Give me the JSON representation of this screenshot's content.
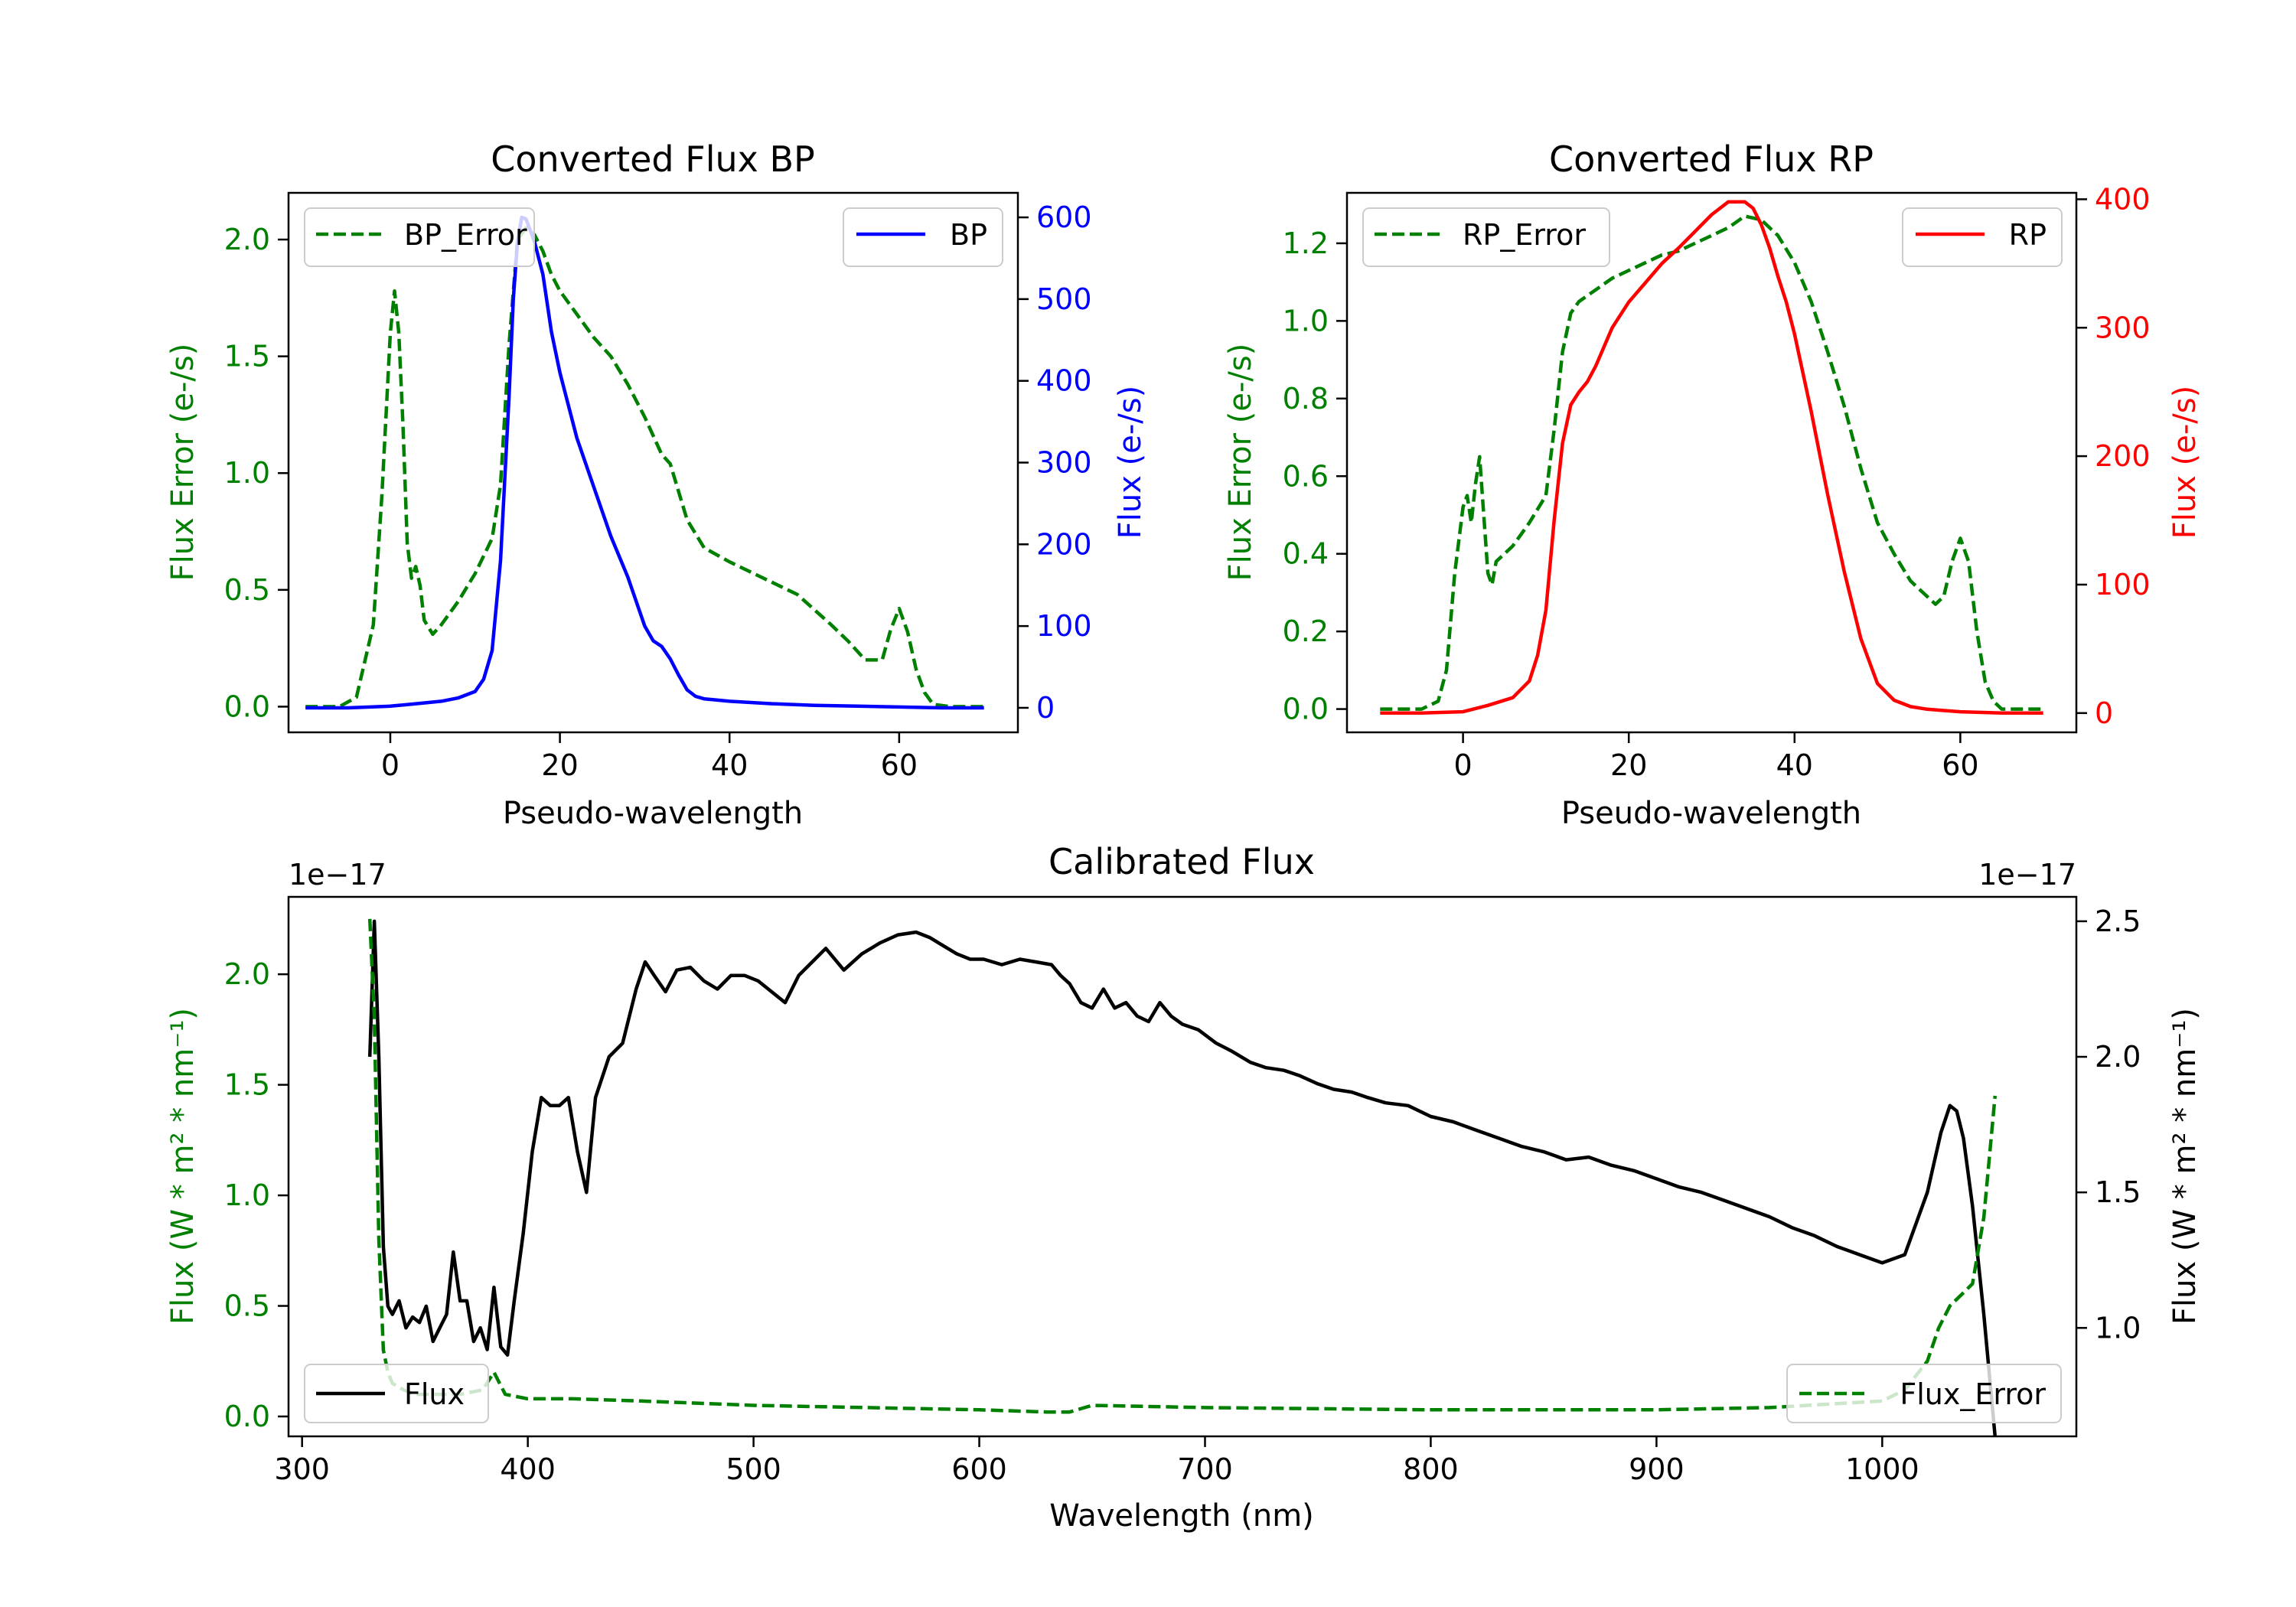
{
  "chart_data": [
    {
      "type": "line",
      "title": "Converted Flux BP",
      "xlabel": "Pseudo-wavelength",
      "ylabel_left": "Flux Error (e-/s)",
      "ylabel_right": "Flux (e-/s)",
      "xlim": [
        -12,
        74
      ],
      "ylim_left": [
        -0.11,
        2.2
      ],
      "ylim_right": [
        -30,
        630
      ],
      "x_ticks": [
        "0",
        "20",
        "40",
        "60"
      ],
      "y_left_ticks": [
        "0.0",
        "0.5",
        "1.0",
        "1.5",
        "2.0"
      ],
      "y_right_ticks": [
        "0",
        "100",
        "200",
        "300",
        "400",
        "500",
        "600"
      ],
      "series": [
        {
          "name": "BP_Error",
          "axis": "left",
          "style": "dashed",
          "color": "#008000",
          "x": [
            -10,
            -6,
            -4,
            -2,
            -1,
            0,
            0.5,
            1,
            1.5,
            2,
            2.5,
            3,
            3.5,
            4,
            5,
            6,
            8,
            10,
            12,
            13,
            14,
            15,
            16,
            17,
            18,
            19,
            20,
            22,
            24,
            26,
            28,
            30,
            32,
            33,
            35,
            37,
            40,
            44,
            48,
            52,
            54,
            56,
            58,
            59,
            60,
            61,
            62,
            63,
            64,
            66,
            70
          ],
          "values": [
            0,
            0,
            0.04,
            0.35,
            0.9,
            1.6,
            1.78,
            1.6,
            1.2,
            0.7,
            0.55,
            0.6,
            0.52,
            0.37,
            0.31,
            0.35,
            0.45,
            0.57,
            0.72,
            0.95,
            1.55,
            2.0,
            2.05,
            2.02,
            1.95,
            1.85,
            1.78,
            1.68,
            1.58,
            1.5,
            1.38,
            1.24,
            1.08,
            1.04,
            0.8,
            0.68,
            0.62,
            0.55,
            0.48,
            0.35,
            0.28,
            0.2,
            0.2,
            0.33,
            0.42,
            0.32,
            0.16,
            0.06,
            0.01,
            0,
            0
          ]
        },
        {
          "name": "BP",
          "axis": "right",
          "style": "solid",
          "color": "#0000ff",
          "x": [
            -10,
            -5,
            0,
            2,
            6,
            8,
            10,
            11,
            12,
            13,
            14,
            14.5,
            15,
            15.5,
            16,
            17,
            18,
            19,
            20,
            22,
            24,
            26,
            28,
            30,
            31,
            32,
            33,
            34,
            35,
            36,
            37,
            38,
            40,
            45,
            50,
            55,
            60,
            65,
            70
          ],
          "values": [
            0,
            0,
            2,
            4,
            8,
            12,
            20,
            35,
            70,
            180,
            380,
            500,
            570,
            600,
            598,
            570,
            530,
            460,
            410,
            330,
            270,
            210,
            160,
            100,
            82,
            75,
            60,
            40,
            22,
            14,
            11,
            10,
            8,
            5,
            3,
            2,
            1,
            0,
            0
          ]
        }
      ],
      "legend": [
        {
          "label": "BP_Error",
          "position": "upper-left"
        },
        {
          "label": "BP",
          "position": "upper-right"
        }
      ]
    },
    {
      "type": "line",
      "title": "Converted Flux RP",
      "xlabel": "Pseudo-wavelength",
      "ylabel_left": "Flux Error (e-/s)",
      "ylabel_right": "Flux (e-/s)",
      "xlim": [
        -14,
        74
      ],
      "ylim_left": [
        -0.06,
        1.33
      ],
      "ylim_right": [
        -15,
        405
      ],
      "x_ticks": [
        "0",
        "20",
        "40",
        "60"
      ],
      "y_left_ticks": [
        "0.0",
        "0.2",
        "0.4",
        "0.6",
        "0.8",
        "1.0",
        "1.2"
      ],
      "y_right_ticks": [
        "0",
        "100",
        "200",
        "300",
        "400"
      ],
      "series": [
        {
          "name": "RP_Error",
          "axis": "left",
          "style": "dashed",
          "color": "#008000",
          "x": [
            -10,
            -5,
            -3,
            -2,
            -1,
            0,
            0.5,
            1,
            1.5,
            2,
            2.5,
            3,
            3.5,
            4,
            5,
            6,
            8,
            10,
            11,
            12,
            13,
            14,
            16,
            18,
            20,
            22,
            24,
            26,
            28,
            30,
            32,
            34,
            36,
            38,
            40,
            42,
            44,
            46,
            48,
            50,
            52,
            54,
            56,
            57,
            58,
            59,
            60,
            61,
            62,
            63,
            64,
            65,
            70
          ],
          "values": [
            0,
            0,
            0.02,
            0.1,
            0.35,
            0.52,
            0.55,
            0.48,
            0.58,
            0.65,
            0.5,
            0.35,
            0.32,
            0.38,
            0.4,
            0.42,
            0.48,
            0.55,
            0.72,
            0.92,
            1.02,
            1.05,
            1.08,
            1.11,
            1.13,
            1.15,
            1.17,
            1.18,
            1.2,
            1.22,
            1.24,
            1.27,
            1.26,
            1.22,
            1.15,
            1.05,
            0.92,
            0.78,
            0.62,
            0.48,
            0.4,
            0.33,
            0.29,
            0.27,
            0.29,
            0.38,
            0.44,
            0.38,
            0.2,
            0.07,
            0.02,
            0,
            0
          ]
        },
        {
          "name": "RP",
          "axis": "right",
          "style": "solid",
          "color": "#ff0000",
          "x": [
            -10,
            -5,
            0,
            3,
            6,
            8,
            9,
            10,
            11,
            12,
            13,
            14,
            15,
            16,
            18,
            20,
            22,
            24,
            26,
            28,
            30,
            32,
            34,
            35,
            36,
            37,
            38,
            39,
            40,
            42,
            44,
            46,
            48,
            50,
            52,
            54,
            56,
            58,
            60,
            65,
            70
          ],
          "values": [
            0,
            0,
            1,
            6,
            12,
            25,
            45,
            80,
            150,
            210,
            240,
            250,
            258,
            270,
            300,
            320,
            335,
            350,
            362,
            375,
            388,
            398,
            398,
            393,
            380,
            362,
            340,
            320,
            295,
            235,
            170,
            110,
            58,
            23,
            10,
            5,
            3,
            2,
            1,
            0,
            0
          ]
        }
      ],
      "legend": [
        {
          "label": "RP_Error",
          "position": "upper-left"
        },
        {
          "label": "RP",
          "position": "upper-right"
        }
      ]
    },
    {
      "type": "line",
      "title": "Calibrated Flux",
      "xlabel": "Wavelength (nm)",
      "ylabel_left": "Flux (W * m² * nm⁻¹)",
      "ylabel_right": "Flux (W * m² * nm⁻¹)",
      "offset_left": "1e−17",
      "offset_right": "1e−17",
      "xlim": [
        294,
        1086
      ],
      "ylim_left": [
        -0.09,
        2.35
      ],
      "ylim_right": [
        0.6,
        2.59
      ],
      "x_ticks": [
        "300",
        "400",
        "500",
        "600",
        "700",
        "800",
        "900",
        "1000"
      ],
      "y_left_ticks": [
        "0.0",
        "0.5",
        "1.0",
        "1.5",
        "2.0"
      ],
      "y_right_ticks": [
        "1.0",
        "1.5",
        "2.0",
        "2.5"
      ],
      "series": [
        {
          "name": "Flux",
          "axis": "right",
          "style": "solid",
          "color": "#000000",
          "x": [
            330,
            332,
            334,
            336,
            338,
            340,
            343,
            346,
            349,
            352,
            355,
            358,
            361,
            364,
            367,
            370,
            373,
            376,
            379,
            382,
            385,
            388,
            391,
            394,
            398,
            402,
            406,
            410,
            414,
            418,
            422,
            426,
            430,
            436,
            442,
            448,
            452,
            456,
            461,
            466,
            472,
            478,
            484,
            490,
            496,
            502,
            508,
            514,
            520,
            526,
            532,
            540,
            548,
            556,
            564,
            572,
            578,
            584,
            590,
            596,
            602,
            610,
            618,
            625,
            632,
            636,
            640,
            645,
            650,
            655,
            660,
            665,
            670,
            675,
            680,
            685,
            690,
            697,
            705,
            712,
            720,
            727,
            735,
            742,
            750,
            757,
            765,
            772,
            780,
            790,
            800,
            810,
            820,
            830,
            840,
            850,
            860,
            870,
            880,
            890,
            900,
            910,
            920,
            930,
            940,
            950,
            960,
            970,
            980,
            990,
            1000,
            1010,
            1020,
            1026,
            1030,
            1033,
            1036,
            1040,
            1045,
            1050
          ],
          "values": [
            2.0,
            2.5,
            2.0,
            1.3,
            1.08,
            1.05,
            1.1,
            1.0,
            1.04,
            1.02,
            1.08,
            0.95,
            1.0,
            1.05,
            1.28,
            1.1,
            1.1,
            0.95,
            1.0,
            0.92,
            1.15,
            0.93,
            0.9,
            1.1,
            1.35,
            1.65,
            1.85,
            1.82,
            1.82,
            1.85,
            1.65,
            1.5,
            1.85,
            2.0,
            2.05,
            2.25,
            2.35,
            2.3,
            2.24,
            2.32,
            2.33,
            2.28,
            2.25,
            2.3,
            2.3,
            2.28,
            2.24,
            2.2,
            2.3,
            2.35,
            2.4,
            2.32,
            2.38,
            2.42,
            2.45,
            2.46,
            2.44,
            2.41,
            2.38,
            2.36,
            2.36,
            2.34,
            2.36,
            2.35,
            2.34,
            2.3,
            2.27,
            2.2,
            2.18,
            2.25,
            2.18,
            2.2,
            2.15,
            2.13,
            2.2,
            2.15,
            2.12,
            2.1,
            2.05,
            2.02,
            1.98,
            1.96,
            1.95,
            1.93,
            1.9,
            1.88,
            1.87,
            1.85,
            1.83,
            1.82,
            1.78,
            1.76,
            1.73,
            1.7,
            1.67,
            1.65,
            1.62,
            1.63,
            1.6,
            1.58,
            1.55,
            1.52,
            1.5,
            1.47,
            1.44,
            1.41,
            1.37,
            1.34,
            1.3,
            1.27,
            1.24,
            1.27,
            1.5,
            1.72,
            1.82,
            1.8,
            1.7,
            1.45,
            1.05,
            0.6
          ]
        },
        {
          "name": "Flux_Error",
          "axis": "left",
          "style": "dashed",
          "color": "#008000",
          "x": [
            330,
            332,
            334,
            336,
            338,
            340,
            345,
            350,
            360,
            370,
            380,
            385,
            390,
            400,
            420,
            450,
            500,
            550,
            600,
            630,
            640,
            650,
            700,
            800,
            900,
            950,
            1000,
            1010,
            1020,
            1025,
            1030,
            1035,
            1040,
            1045,
            1050
          ],
          "values": [
            2.25,
            1.8,
            0.8,
            0.3,
            0.2,
            0.15,
            0.12,
            0.1,
            0.1,
            0.1,
            0.12,
            0.2,
            0.1,
            0.08,
            0.08,
            0.07,
            0.05,
            0.04,
            0.03,
            0.02,
            0.02,
            0.05,
            0.04,
            0.03,
            0.03,
            0.04,
            0.07,
            0.12,
            0.25,
            0.4,
            0.5,
            0.55,
            0.6,
            0.9,
            1.45
          ]
        }
      ],
      "legend": [
        {
          "label": "Flux",
          "position": "lower-left"
        },
        {
          "label": "Flux_Error",
          "position": "lower-right"
        }
      ]
    }
  ]
}
